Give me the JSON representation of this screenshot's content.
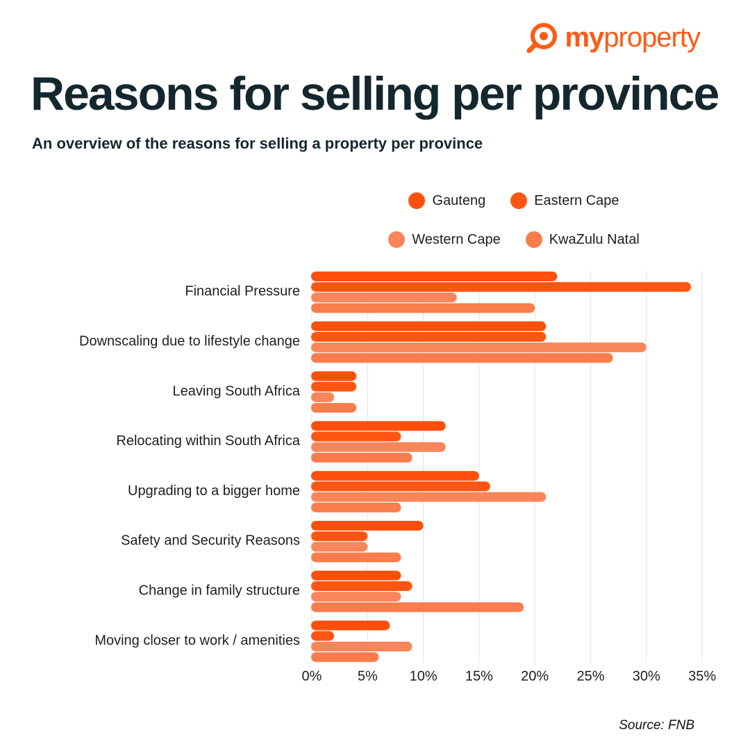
{
  "brand": {
    "logo_main": "my",
    "logo_rest": "property",
    "color": "#ff5a14"
  },
  "header": {
    "title": "Reasons for selling per province",
    "subtitle": "An overview of the reasons for selling a property per province"
  },
  "source": "Source: FNB",
  "chart_data": {
    "type": "bar",
    "orientation": "horizontal",
    "title": "Reasons for selling per province",
    "subtitle": "An overview of the reasons for selling a property per province",
    "categories": [
      "Financial Pressure",
      "Downscaling due to lifestyle change",
      "Leaving South Africa",
      "Relocating within South Africa",
      "Upgrading to a bigger home",
      "Safety and Security Reasons",
      "Change in family structure",
      "Moving closer to work / amenities"
    ],
    "series": [
      {
        "name": "Gauteng",
        "color": "#ff4f0d",
        "values": [
          22,
          21,
          4,
          12,
          15,
          10,
          8,
          7
        ]
      },
      {
        "name": "Eastern Cape",
        "color": "#ff5512",
        "values": [
          34,
          21,
          4,
          8,
          16,
          5,
          9,
          2
        ]
      },
      {
        "name": "Western Cape",
        "color": "#f8865a",
        "values": [
          13,
          30,
          2,
          12,
          21,
          5,
          8,
          9
        ]
      },
      {
        "name": "KwaZulu Natal",
        "color": "#f97c4c",
        "values": [
          20,
          27,
          4,
          9,
          8,
          8,
          19,
          6
        ]
      }
    ],
    "xlim": [
      0,
      35
    ],
    "xticks": [
      0,
      5,
      10,
      15,
      20,
      25,
      30,
      35
    ],
    "xtick_labels": [
      "0%",
      "5%",
      "10%",
      "15%",
      "20%",
      "25%",
      "30%",
      "35%"
    ],
    "grid": "vertical",
    "legend_position": "top-right"
  }
}
